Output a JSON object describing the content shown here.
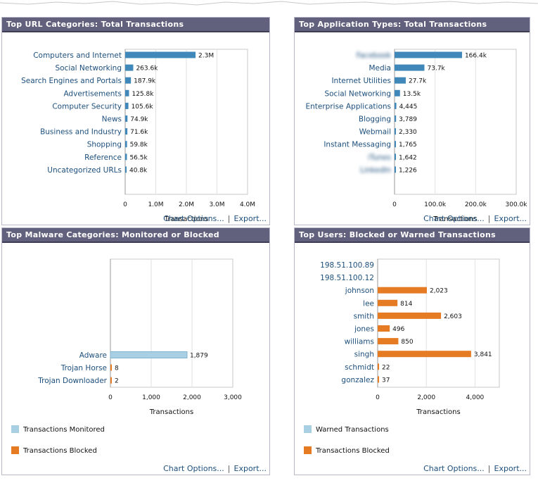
{
  "panels": [
    {
      "id": "url",
      "title": "Top URL Categories: Total Transactions",
      "footer": {
        "chart_options": "Chart Options...",
        "export": "Export..."
      }
    },
    {
      "id": "app",
      "title": "Top Application Types: Total Transactions",
      "footer": {
        "chart_options": "Chart Options...",
        "export": "Export..."
      }
    },
    {
      "id": "malware",
      "title": "Top Malware Categories: Monitored or Blocked",
      "footer": {
        "chart_options": "Chart Options...",
        "export": "Export..."
      }
    },
    {
      "id": "users",
      "title": "Top Users: Blocked or Warned Transactions",
      "footer": {
        "chart_options": "Chart Options...",
        "export": "Export..."
      }
    }
  ],
  "colors": {
    "bar_blue": "#3f88b9",
    "monitored": "#a9cfe2",
    "blocked": "#e57c24",
    "header": "#61617d"
  },
  "chart_data": [
    {
      "type": "bar",
      "orientation": "horizontal",
      "categories": [
        "Computers and Internet",
        "Social Networking",
        "Search Engines and Portals",
        "Advertisements",
        "Computer Security",
        "News",
        "Business and Industry",
        "Shopping",
        "Reference",
        "Uncategorized URLs"
      ],
      "values": [
        2300000,
        263600,
        187900,
        125800,
        105600,
        74900,
        71600,
        59800,
        56500,
        40800
      ],
      "value_labels": [
        "2.3M",
        "263.6k",
        "187.9k",
        "125.8k",
        "105.6k",
        "74.9k",
        "71.6k",
        "59.8k",
        "56.5k",
        "40.8k"
      ],
      "xlim": [
        0,
        4000000
      ],
      "ticks": [
        0,
        1000000,
        2000000,
        3000000,
        4000000
      ],
      "tick_labels": [
        "0",
        "1.0M",
        "2.0M",
        "3.0M",
        "4.0M"
      ],
      "xlabel": "Transactions",
      "grid": true
    },
    {
      "type": "bar",
      "orientation": "horizontal",
      "categories": [
        "Facebook",
        "Media",
        "Internet Utilities",
        "Social Networking",
        "Enterprise Applications",
        "Blogging",
        "Webmail",
        "Instant Messaging",
        "iTunes",
        "LinkedIn"
      ],
      "blurred_categories": [
        0,
        8,
        9
      ],
      "values": [
        166400,
        73700,
        27700,
        13500,
        4445,
        3789,
        2330,
        1765,
        1642,
        1226
      ],
      "value_labels": [
        "166.4k",
        "73.7k",
        "27.7k",
        "13.5k",
        "4,445",
        "3,789",
        "2,330",
        "1,765",
        "1,642",
        "1,226"
      ],
      "xlim": [
        0,
        300000
      ],
      "ticks": [
        0,
        100000,
        200000,
        300000
      ],
      "tick_labels": [
        "0",
        "100.0k",
        "200.0k",
        "300.0k"
      ],
      "xlabel": "Transactions",
      "grid": true
    },
    {
      "type": "bar",
      "orientation": "horizontal",
      "categories": [
        "Adware",
        "Trojan Horse",
        "Trojan Downloader"
      ],
      "series": [
        {
          "name": "Transactions Monitored",
          "values": [
            1879,
            0,
            0
          ]
        },
        {
          "name": "Transactions Blocked",
          "values": [
            0,
            8,
            2
          ]
        }
      ],
      "value_labels": [
        "1,879",
        "8",
        "2"
      ],
      "xlim": [
        0,
        3000
      ],
      "ticks": [
        0,
        1000,
        2000,
        3000
      ],
      "tick_labels": [
        "0",
        "1,000",
        "2,000",
        "3,000"
      ],
      "xlabel": "Transactions",
      "grid": true,
      "legend": "bottom-left"
    },
    {
      "type": "bar",
      "orientation": "horizontal",
      "categories": [
        "198.51.100.89",
        "198.51.100.12",
        "johnson",
        "lee",
        "smith",
        "jones",
        "williams",
        "singh",
        "schmidt",
        "gonzalez"
      ],
      "series": [
        {
          "name": "Warned Transactions",
          "values": [
            0,
            0,
            0,
            0,
            0,
            0,
            0,
            0,
            0,
            0
          ]
        },
        {
          "name": "Transactions Blocked",
          "values": [
            null,
            null,
            2023,
            814,
            2603,
            496,
            850,
            3841,
            22,
            37
          ]
        }
      ],
      "value_labels": [
        "",
        "",
        "2,023",
        "814",
        "2,603",
        "496",
        "850",
        "3,841",
        "22",
        "37"
      ],
      "xlim": [
        0,
        5000
      ],
      "ticks": [
        0,
        2000,
        4000
      ],
      "tick_labels": [
        "0",
        "2,000",
        "4,000"
      ],
      "xlabel": "Transactions",
      "grid": true,
      "legend": "bottom-left"
    }
  ]
}
